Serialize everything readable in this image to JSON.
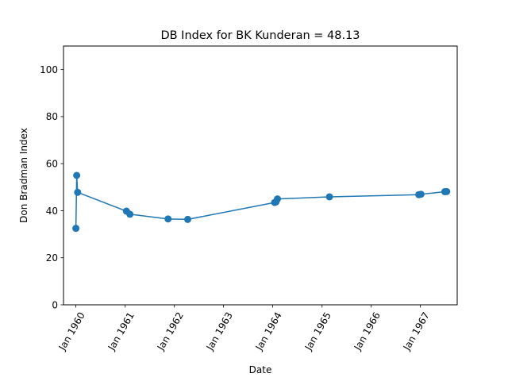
{
  "chart_data": {
    "type": "line",
    "title": "DB Index for BK Kunderan = 48.13",
    "xlabel": "Date",
    "ylabel": "Don Bradman Index",
    "x_ticks": [
      "Jan 1960",
      "Jan 1961",
      "Jan 1962",
      "Jan 1963",
      "Jan 1964",
      "Jan 1965",
      "Jan 1966",
      "Jan 1967"
    ],
    "y_ticks": [
      "0",
      "20",
      "40",
      "60",
      "80",
      "100"
    ],
    "ylim": [
      0,
      110
    ],
    "xlim": [
      "1959-10-01",
      "1967-10-01"
    ],
    "grid": false,
    "color": "#1f77b4",
    "series": [
      {
        "x": [
          "1960-01-01",
          "1960-01-07",
          "1960-01-14",
          "1961-01-10",
          "1961-02-05",
          "1961-11-15",
          "1962-04-10",
          "1964-01-15",
          "1964-01-25",
          "1964-02-05",
          "1965-02-25",
          "1966-12-20",
          "1967-01-05",
          "1967-07-01",
          "1967-07-15"
        ],
        "values": [
          32.5,
          55.0,
          47.8,
          39.8,
          38.5,
          36.5,
          36.3,
          43.5,
          43.7,
          45.0,
          45.9,
          46.8,
          47.0,
          48.1,
          48.13
        ]
      }
    ]
  }
}
